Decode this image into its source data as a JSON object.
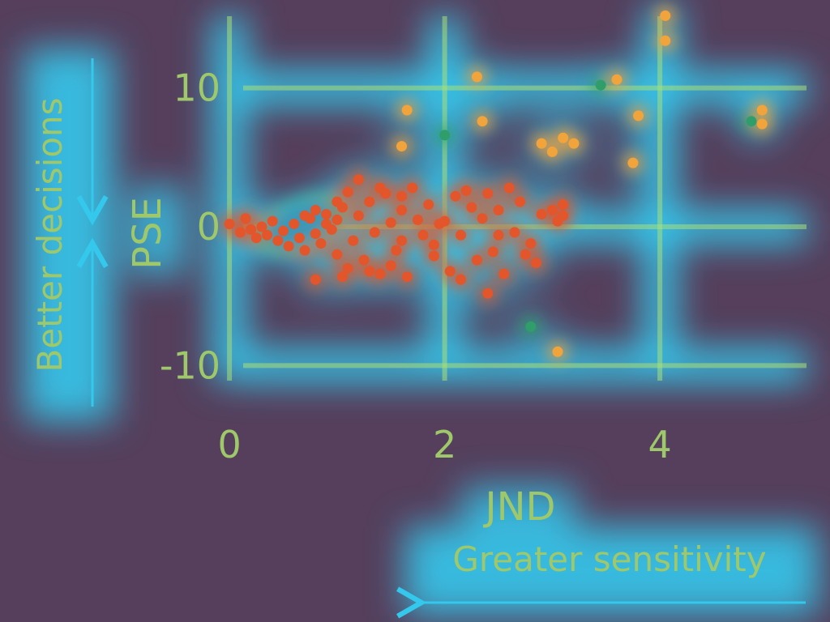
{
  "chart_data": {
    "type": "scatter",
    "title": "",
    "xlabel": "JND",
    "ylabel": "PSE",
    "xlim": [
      -0.4,
      5.4
    ],
    "ylim": [
      -14,
      14
    ],
    "x_ticks": [
      0,
      2,
      4
    ],
    "y_ticks": [
      -10,
      0,
      10
    ],
    "grid": true,
    "annotations": {
      "x_direction": "Greater sensitivity",
      "y_direction": "Better decisions"
    },
    "colors": {
      "background": "#553f5c",
      "text": "#9fc86a",
      "grid_glow": "#34c8ec",
      "grid_core": "#a8e07a",
      "point_hot": "#e3552a",
      "point_warm": "#f2a43c",
      "point_cool": "#2f9e6a",
      "cluster_core": "#2a6fe0"
    },
    "series": [
      {
        "values": [
          [
            0.0,
            0.2
          ],
          [
            0.1,
            -0.4
          ],
          [
            0.15,
            0.6
          ],
          [
            0.2,
            -0.2
          ],
          [
            0.25,
            -0.8
          ],
          [
            0.3,
            0.0
          ],
          [
            0.35,
            -0.6
          ],
          [
            0.4,
            0.4
          ],
          [
            0.45,
            -1.0
          ],
          [
            0.5,
            -0.3
          ],
          [
            0.55,
            -1.4
          ],
          [
            0.6,
            0.2
          ],
          [
            0.65,
            -0.8
          ],
          [
            0.7,
            -1.7
          ],
          [
            0.75,
            0.6
          ],
          [
            0.8,
            -0.5
          ],
          [
            0.85,
            -1.2
          ],
          [
            0.9,
            0.9
          ],
          [
            0.95,
            -0.2
          ],
          [
            1.0,
            -2.0
          ],
          [
            1.0,
            0.5
          ],
          [
            0.7,
            0.8
          ],
          [
            0.8,
            1.2
          ],
          [
            0.9,
            0.2
          ],
          [
            1.05,
            1.4
          ],
          [
            1.1,
            -3.0
          ],
          [
            1.15,
            -1.0
          ],
          [
            1.2,
            0.8
          ],
          [
            1.25,
            -2.4
          ],
          [
            1.3,
            1.8
          ],
          [
            1.35,
            -0.4
          ],
          [
            1.4,
            -3.4
          ],
          [
            1.45,
            2.4
          ],
          [
            1.5,
            0.3
          ],
          [
            1.55,
            -1.7
          ],
          [
            1.6,
            1.2
          ],
          [
            1.65,
            -3.6
          ],
          [
            1.7,
            2.8
          ],
          [
            1.2,
            3.4
          ],
          [
            1.05,
            -3.6
          ],
          [
            0.8,
            -3.8
          ],
          [
            1.3,
            -3.2
          ],
          [
            1.5,
            -2.8
          ],
          [
            1.75,
            0.5
          ],
          [
            1.8,
            -0.6
          ],
          [
            1.85,
            1.6
          ],
          [
            1.9,
            -1.3
          ],
          [
            1.95,
            0.2
          ],
          [
            1.4,
            2.8
          ],
          [
            1.6,
            2.2
          ],
          [
            1.1,
            2.5
          ],
          [
            1.0,
            1.8
          ],
          [
            1.6,
            -1.0
          ],
          [
            1.9,
            -2.1
          ],
          [
            2.0,
            0.4
          ],
          [
            2.05,
            -3.2
          ],
          [
            2.1,
            2.2
          ],
          [
            2.15,
            -0.6
          ],
          [
            2.25,
            1.4
          ],
          [
            2.3,
            -2.4
          ],
          [
            2.35,
            0.6
          ],
          [
            2.4,
            2.4
          ],
          [
            2.45,
            -1.8
          ],
          [
            2.5,
            1.2
          ],
          [
            2.55,
            -3.4
          ],
          [
            2.6,
            2.8
          ],
          [
            2.65,
            -0.4
          ],
          [
            2.7,
            1.8
          ],
          [
            2.75,
            -2.0
          ],
          [
            2.4,
            -4.8
          ],
          [
            2.8,
            -1.2
          ],
          [
            2.85,
            -2.6
          ],
          [
            2.9,
            0.9
          ],
          [
            3.0,
            1.2
          ],
          [
            3.05,
            0.4
          ],
          [
            3.1,
            1.6
          ],
          [
            3.1,
            0.8
          ],
          [
            2.15,
            -3.8
          ],
          [
            2.5,
            -0.6
          ],
          [
            2.2,
            2.6
          ]
        ]
      },
      {
        "values": [
          [
            1.65,
            8.4
          ],
          [
            2.3,
            10.8
          ],
          [
            2.35,
            7.6
          ],
          [
            2.0,
            6.6
          ],
          [
            2.9,
            6.0
          ],
          [
            3.0,
            5.4
          ],
          [
            3.1,
            6.4
          ],
          [
            3.2,
            6.0
          ],
          [
            3.45,
            10.2
          ],
          [
            3.6,
            10.6
          ],
          [
            3.8,
            8.0
          ],
          [
            4.05,
            15.2
          ],
          [
            4.05,
            13.4
          ],
          [
            4.85,
            7.6
          ],
          [
            4.95,
            8.4
          ],
          [
            4.95,
            7.4
          ],
          [
            3.75,
            4.6
          ],
          [
            1.6,
            5.8
          ],
          [
            2.8,
            -7.2
          ],
          [
            3.05,
            -9.0
          ]
        ]
      }
    ]
  }
}
